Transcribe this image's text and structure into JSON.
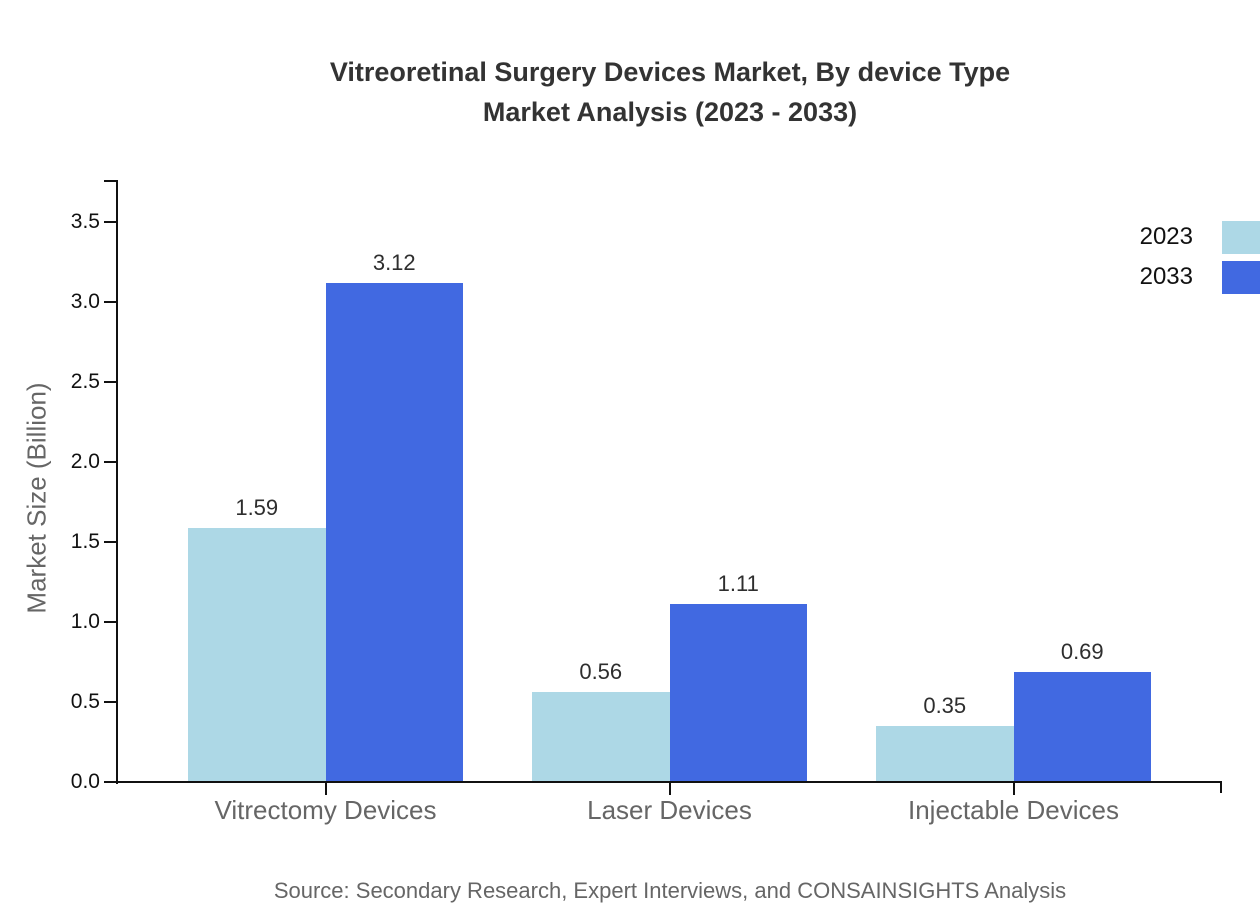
{
  "title": {
    "line1": "Vitreoretinal Surgery Devices Market, By device Type",
    "line2": "Market Analysis (2023 - 2033)"
  },
  "source_note": "Source: Secondary Research, Expert Interviews, and CONSAINSIGHTS Analysis",
  "chart_data": {
    "type": "bar",
    "title": "Vitreoretinal Surgery Devices Market, By device Type Market Analysis (2023 - 2033)",
    "categories": [
      "Vitrectomy Devices",
      "Laser Devices",
      "Injectable Devices"
    ],
    "series": [
      {
        "name": "2023",
        "color": "#ADD8E6",
        "values": [
          1.59,
          0.56,
          0.35
        ]
      },
      {
        "name": "2033",
        "color": "#4169E1",
        "values": [
          3.12,
          1.11,
          0.69
        ]
      }
    ],
    "xlabel": "",
    "ylabel": "Market Size (Billion)",
    "ylim": [
      0,
      3.76
    ],
    "yticks": [
      0.0,
      0.5,
      1.0,
      1.5,
      2.0,
      2.5,
      3.0,
      3.5
    ],
    "grid": false,
    "legend_position": "top-right",
    "bar_value_labels": true,
    "axis_color": "#111111",
    "axis_text_color": "#666666",
    "tick_text_color": "#111111",
    "value_label_color": "#2e2e2e"
  }
}
